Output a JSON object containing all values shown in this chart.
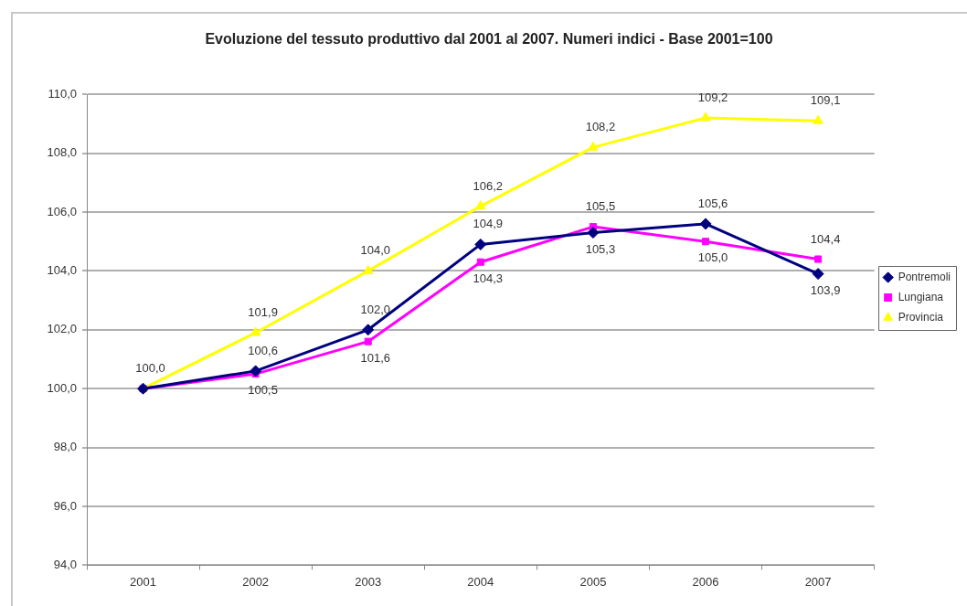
{
  "chart_data": {
    "type": "line",
    "title": "Evoluzione del tessuto produttivo dal 2001 al 2007. Numeri indici - Base 2001=100",
    "categories": [
      "2001",
      "2002",
      "2003",
      "2004",
      "2005",
      "2006",
      "2007"
    ],
    "series": [
      {
        "name": "Pontremoli",
        "color": "#000080",
        "marker": "diamond",
        "values": [
          100.0,
          100.6,
          102.0,
          104.9,
          105.3,
          105.6,
          103.9
        ],
        "value_labels": [
          null,
          "100,6",
          "102,0",
          "104,9",
          "105,3",
          "105,6",
          "103,9"
        ]
      },
      {
        "name": "Lungiana",
        "color": "#ff00ff",
        "marker": "square",
        "values": [
          100.0,
          100.5,
          101.6,
          104.3,
          105.5,
          105.0,
          104.4
        ],
        "value_labels": [
          null,
          "100,5",
          "101,6",
          "104,3",
          "105,5",
          "105,0",
          "104,4"
        ]
      },
      {
        "name": "Provincia",
        "color": "#ffff00",
        "marker": "triangle",
        "values": [
          100.0,
          101.9,
          104.0,
          106.2,
          108.2,
          109.2,
          109.1
        ],
        "value_labels": [
          "100,0",
          "101,9",
          "104,0",
          "106,2",
          "108,2",
          "109,2",
          "109,1"
        ]
      }
    ],
    "ylim": [
      94,
      110
    ],
    "yticks": [
      {
        "value": 94,
        "label": "94,0"
      },
      {
        "value": 96,
        "label": "96,0"
      },
      {
        "value": 98,
        "label": "98,0"
      },
      {
        "value": 100,
        "label": "100,0"
      },
      {
        "value": 102,
        "label": "102,0"
      },
      {
        "value": 104,
        "label": "104,0"
      },
      {
        "value": 106,
        "label": "106,0"
      },
      {
        "value": 108,
        "label": "108,0"
      },
      {
        "value": 110,
        "label": "110,0"
      }
    ],
    "grid": "y",
    "legend": "right",
    "line_style": "solid"
  }
}
